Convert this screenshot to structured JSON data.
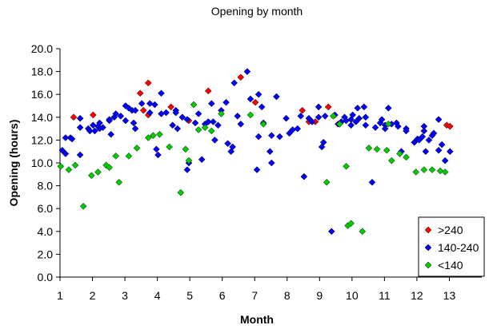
{
  "chart_data": {
    "type": "scatter",
    "title": "Opening by month",
    "xlabel": "Month",
    "ylabel": "Opening (hours)",
    "xlim": [
      1,
      14
    ],
    "ylim": [
      0,
      20
    ],
    "xticks": [
      1,
      2,
      3,
      4,
      5,
      6,
      7,
      8,
      9,
      10,
      11,
      12,
      13
    ],
    "xtick_labels": [
      "1",
      "2",
      "3",
      "4",
      "5",
      "6",
      "7",
      "8",
      "9",
      "10",
      "11",
      "12",
      "13"
    ],
    "yticks": [
      0,
      2,
      4,
      6,
      8,
      10,
      12,
      14,
      16,
      18,
      20
    ],
    "ytick_labels": [
      "0.0",
      "2.0",
      "4.0",
      "6.0",
      "8.0",
      "10.0",
      "12.0",
      "14.0",
      "16.0",
      "18.0",
      "20.0"
    ],
    "grid": false,
    "legend_position": "bottom-right",
    "series": [
      {
        "name": ">240",
        "color": "#ff0000",
        "marker": "diamond",
        "points": [
          [
            1.42,
            14.0
          ],
          [
            2.02,
            14.2
          ],
          [
            3.47,
            16.1
          ],
          [
            3.57,
            14.6
          ],
          [
            3.72,
            14.2
          ],
          [
            3.72,
            17.0
          ],
          [
            4.42,
            14.9
          ],
          [
            4.97,
            13.7
          ],
          [
            5.57,
            16.3
          ],
          [
            6.57,
            17.5
          ],
          [
            7.02,
            15.3
          ],
          [
            8.47,
            14.6
          ],
          [
            8.67,
            13.6
          ],
          [
            8.87,
            13.6
          ],
          [
            9.27,
            14.9
          ],
          [
            12.92,
            13.3
          ],
          [
            13.02,
            13.2
          ]
        ]
      },
      {
        "name": "140-240",
        "color": "#0000ff",
        "marker": "diamond",
        "points": [
          [
            1.07,
            11.1
          ],
          [
            1.17,
            10.8
          ],
          [
            1.17,
            12.2
          ],
          [
            1.32,
            12.2
          ],
          [
            1.37,
            12.1
          ],
          [
            1.62,
            13.1
          ],
          [
            1.62,
            13.9
          ],
          [
            1.62,
            10.7
          ],
          [
            1.87,
            13.0
          ],
          [
            1.92,
            12.8
          ],
          [
            2.02,
            13.3
          ],
          [
            2.07,
            12.8
          ],
          [
            2.17,
            13.2
          ],
          [
            2.22,
            13.5
          ],
          [
            2.22,
            13.0
          ],
          [
            2.32,
            13.1
          ],
          [
            2.52,
            13.8
          ],
          [
            2.52,
            13.7
          ],
          [
            2.57,
            12.5
          ],
          [
            2.67,
            14.0
          ],
          [
            2.72,
            14.3
          ],
          [
            2.87,
            14.1
          ],
          [
            3.02,
            15.0
          ],
          [
            3.02,
            13.7
          ],
          [
            3.12,
            14.8
          ],
          [
            3.22,
            14.6
          ],
          [
            3.27,
            13.5
          ],
          [
            3.32,
            14.6
          ],
          [
            3.32,
            13.0
          ],
          [
            3.52,
            15.2
          ],
          [
            3.77,
            15.2
          ],
          [
            3.77,
            14.4
          ],
          [
            3.92,
            15.1
          ],
          [
            3.97,
            11.2
          ],
          [
            4.02,
            10.7
          ],
          [
            4.12,
            16.1
          ],
          [
            4.12,
            14.3
          ],
          [
            4.27,
            14.4
          ],
          [
            4.47,
            13.3
          ],
          [
            4.57,
            14.6
          ],
          [
            4.57,
            14.4
          ],
          [
            4.62,
            13.0
          ],
          [
            4.77,
            14.0
          ],
          [
            4.92,
            13.8
          ],
          [
            4.92,
            9.4
          ],
          [
            4.97,
            10.0
          ],
          [
            5.17,
            13.5
          ],
          [
            5.27,
            14.3
          ],
          [
            5.37,
            10.3
          ],
          [
            5.47,
            13.4
          ],
          [
            5.57,
            13.6
          ],
          [
            5.67,
            15.2
          ],
          [
            5.72,
            13.6
          ],
          [
            5.77,
            12.0
          ],
          [
            5.87,
            13.3
          ],
          [
            5.97,
            14.6
          ],
          [
            6.12,
            15.3
          ],
          [
            6.17,
            11.7
          ],
          [
            6.27,
            11.0
          ],
          [
            6.32,
            11.4
          ],
          [
            6.37,
            17.0
          ],
          [
            6.47,
            14.1
          ],
          [
            6.57,
            13.4
          ],
          [
            6.77,
            18.0
          ],
          [
            6.87,
            15.6
          ],
          [
            7.07,
            9.4
          ],
          [
            7.12,
            12.3
          ],
          [
            7.12,
            16.0
          ],
          [
            7.22,
            14.9
          ],
          [
            7.27,
            13.5
          ],
          [
            7.47,
            11.0
          ],
          [
            7.52,
            10.0
          ],
          [
            7.52,
            12.4
          ],
          [
            7.67,
            15.8
          ],
          [
            7.77,
            12.3
          ],
          [
            7.97,
            13.9
          ],
          [
            8.07,
            12.6
          ],
          [
            8.17,
            12.9
          ],
          [
            8.32,
            13.0
          ],
          [
            8.42,
            14.1
          ],
          [
            8.52,
            8.8
          ],
          [
            8.67,
            13.9
          ],
          [
            8.77,
            13.6
          ],
          [
            8.97,
            14.9
          ],
          [
            8.97,
            14.0
          ],
          [
            9.07,
            11.4
          ],
          [
            9.12,
            11.8
          ],
          [
            9.17,
            14.1
          ],
          [
            9.37,
            4.0
          ],
          [
            9.47,
            14.2
          ],
          [
            9.57,
            13.4
          ],
          [
            9.67,
            13.6
          ],
          [
            9.77,
            14.0
          ],
          [
            9.82,
            13.7
          ],
          [
            9.97,
            13.8
          ],
          [
            9.97,
            13.3
          ],
          [
            10.02,
            14.2
          ],
          [
            10.12,
            13.6
          ],
          [
            10.17,
            14.8
          ],
          [
            10.22,
            13.9
          ],
          [
            10.37,
            14.9
          ],
          [
            10.42,
            14.0
          ],
          [
            10.42,
            13.3
          ],
          [
            10.62,
            8.3
          ],
          [
            10.72,
            13.1
          ],
          [
            10.87,
            13.5
          ],
          [
            10.92,
            13.8
          ],
          [
            11.02,
            13.3
          ],
          [
            11.02,
            13.0
          ],
          [
            11.12,
            14.8
          ],
          [
            11.22,
            13.4
          ],
          [
            11.37,
            13.5
          ],
          [
            11.42,
            13.2
          ],
          [
            11.52,
            11.0
          ],
          [
            11.67,
            13.0
          ],
          [
            11.67,
            12.8
          ],
          [
            11.92,
            11.8
          ],
          [
            12.02,
            12.1
          ],
          [
            12.07,
            12.0
          ],
          [
            12.17,
            12.3
          ],
          [
            12.22,
            13.2
          ],
          [
            12.22,
            12.8
          ],
          [
            12.27,
            11.0
          ],
          [
            12.37,
            12.0
          ],
          [
            12.47,
            12.4
          ],
          [
            12.52,
            12.6
          ],
          [
            12.67,
            13.8
          ],
          [
            12.67,
            11.1
          ],
          [
            12.77,
            11.6
          ],
          [
            12.87,
            10.2
          ],
          [
            13.02,
            11.0
          ]
        ]
      },
      {
        "name": "<140",
        "color": "#00cc00",
        "marker": "diamond",
        "points": [
          [
            1.02,
            9.7
          ],
          [
            1.27,
            9.4
          ],
          [
            1.47,
            9.8
          ],
          [
            1.72,
            6.2
          ],
          [
            1.97,
            8.9
          ],
          [
            2.17,
            9.2
          ],
          [
            2.42,
            9.8
          ],
          [
            2.52,
            9.6
          ],
          [
            2.72,
            10.6
          ],
          [
            2.82,
            8.3
          ],
          [
            3.12,
            10.6
          ],
          [
            3.37,
            11.3
          ],
          [
            3.72,
            12.2
          ],
          [
            3.87,
            12.4
          ],
          [
            4.07,
            12.5
          ],
          [
            4.37,
            11.4
          ],
          [
            4.72,
            7.4
          ],
          [
            4.87,
            11.2
          ],
          [
            4.97,
            10.2
          ],
          [
            5.12,
            15.1
          ],
          [
            5.27,
            12.9
          ],
          [
            5.47,
            13.1
          ],
          [
            5.67,
            12.8
          ],
          [
            5.97,
            14.3
          ],
          [
            6.87,
            14.2
          ],
          [
            7.27,
            13.4
          ],
          [
            9.22,
            8.3
          ],
          [
            9.42,
            14.1
          ],
          [
            9.62,
            13.4
          ],
          [
            9.82,
            9.7
          ],
          [
            9.87,
            4.5
          ],
          [
            9.97,
            4.7
          ],
          [
            10.32,
            4.0
          ],
          [
            10.52,
            11.3
          ],
          [
            10.77,
            11.2
          ],
          [
            11.07,
            11.1
          ],
          [
            11.12,
            13.4
          ],
          [
            11.22,
            10.2
          ],
          [
            11.47,
            10.8
          ],
          [
            11.67,
            10.5
          ],
          [
            11.97,
            9.2
          ],
          [
            12.22,
            9.4
          ],
          [
            12.47,
            9.4
          ],
          [
            12.72,
            9.3
          ],
          [
            12.87,
            9.2
          ]
        ]
      }
    ]
  }
}
